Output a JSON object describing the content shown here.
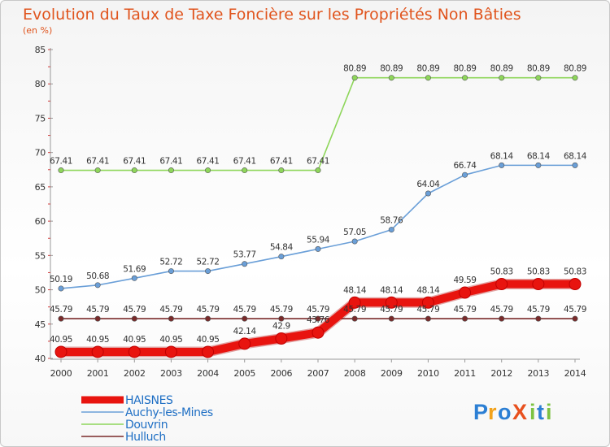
{
  "chart_data": {
    "type": "line",
    "title": "Evolution du Taux de Taxe Foncière sur les Propriétés Non Bâties",
    "subtitle": "(en %)",
    "x": [
      "2000",
      "2001",
      "2002",
      "2003",
      "2004",
      "2005",
      "2006",
      "2007",
      "2008",
      "2009",
      "2010",
      "2011",
      "2012",
      "2013",
      "2014"
    ],
    "ylim": [
      40,
      85
    ],
    "yticks": [
      "40",
      "45",
      "50",
      "55",
      "60",
      "65",
      "70",
      "75",
      "80",
      "85"
    ],
    "series": [
      {
        "name": "Douvrin",
        "color": "#8ed65a",
        "values": [
          67.41,
          67.41,
          67.41,
          67.41,
          67.41,
          67.41,
          67.41,
          67.41,
          80.89,
          80.89,
          80.89,
          80.89,
          80.89,
          80.89,
          80.89
        ],
        "labels": [
          "67.41",
          "67.41",
          "67.41",
          "67.41",
          "67.41",
          "67.41",
          "67.41",
          "67.41",
          "80.89",
          "80.89",
          "80.89",
          "80.89",
          "80.89",
          "80.89",
          "80.89"
        ]
      },
      {
        "name": "Auchy-les-Mines",
        "color": "#6a9fd8",
        "values": [
          50.19,
          50.68,
          51.69,
          52.72,
          52.72,
          53.77,
          54.84,
          55.94,
          57.05,
          58.76,
          64.04,
          66.74,
          68.14,
          68.14,
          68.14
        ],
        "labels": [
          "50.19",
          "50.68",
          "51.69",
          "52.72",
          "52.72",
          "53.77",
          "54.84",
          "55.94",
          "57.05",
          "58.76",
          "64.04",
          "66.74",
          "68.14",
          "68.14",
          "68.14"
        ]
      },
      {
        "name": "Hulluch",
        "color": "#7a2a2a",
        "values": [
          45.79,
          45.79,
          45.79,
          45.79,
          45.79,
          45.79,
          45.79,
          45.79,
          45.79,
          45.79,
          45.79,
          45.79,
          45.79,
          45.79,
          45.79
        ],
        "labels": [
          "45.79",
          "45.79",
          "45.79",
          "45.79",
          "45.79",
          "45.79",
          "45.79",
          "45.79",
          "45.79",
          "45.79",
          "45.79",
          "45.79",
          "45.79",
          "45.79",
          "45.79"
        ]
      },
      {
        "name": "HAISNES",
        "color": "#e8140f",
        "values": [
          40.95,
          40.95,
          40.95,
          40.95,
          40.95,
          42.14,
          42.9,
          43.76,
          48.14,
          48.14,
          48.14,
          49.59,
          50.83,
          50.83,
          50.83
        ],
        "labels": [
          "40.95",
          "40.95",
          "40.95",
          "40.95",
          "40.95",
          "42.14",
          "42.9",
          "43.76",
          "48.14",
          "48.14",
          "48.14",
          "49.59",
          "50.83",
          "50.83",
          "50.83"
        ]
      }
    ],
    "legend_order": [
      "HAISNES",
      "Auchy-les-Mines",
      "Douvrin",
      "Hulluch"
    ],
    "legend_position": "bottom-left",
    "grid": false
  },
  "branding": {
    "logo_text": "ProXiti"
  }
}
